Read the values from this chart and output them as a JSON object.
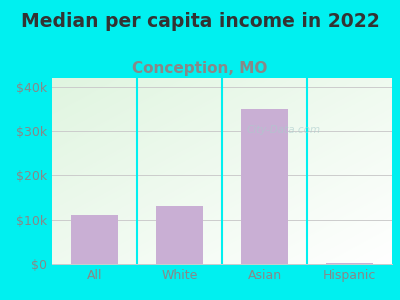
{
  "title": "Median per capita income in 2022",
  "subtitle": "Conception, MO",
  "categories": [
    "All",
    "White",
    "Asian",
    "Hispanic"
  ],
  "values": [
    11000,
    13000,
    35000,
    200
  ],
  "bar_color": "#c9afd4",
  "title_fontsize": 13.5,
  "subtitle_fontsize": 11,
  "subtitle_color": "#888888",
  "title_color": "#333333",
  "background_outer": "#00f0f0",
  "ylim": [
    0,
    42000
  ],
  "yticks": [
    0,
    10000,
    20000,
    30000,
    40000
  ],
  "ytick_labels": [
    "$0",
    "$10k",
    "$20k",
    "$30k",
    "$40k"
  ],
  "tick_color": "#888888",
  "axis_label_fontsize": 9,
  "watermark": "City-Data.com",
  "separator_color": "#00f0f0",
  "grid_color": "#cccccc"
}
